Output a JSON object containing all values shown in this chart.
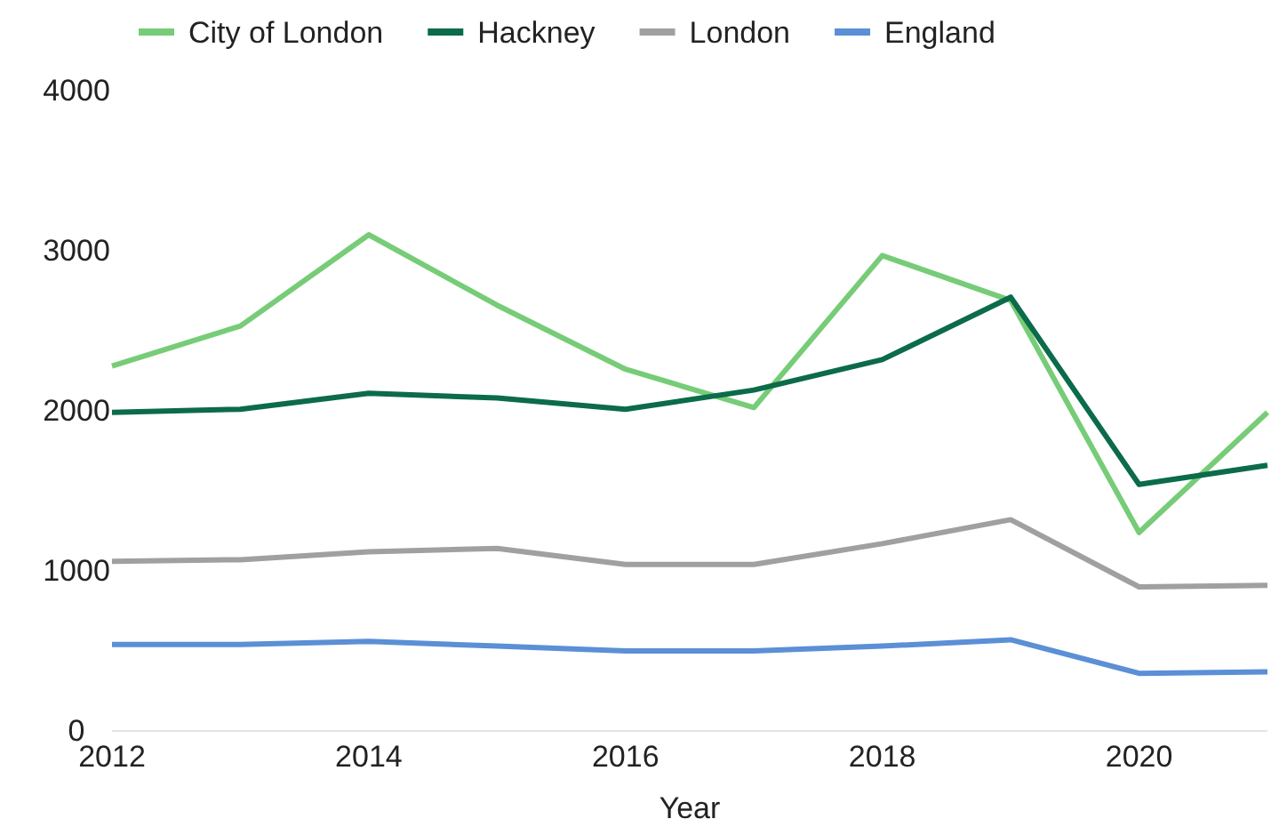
{
  "chart_data": {
    "type": "line",
    "xlabel": "Year",
    "x": [
      2012,
      2013,
      2014,
      2015,
      2016,
      2017,
      2018,
      2019,
      2020,
      2021
    ],
    "xlim": [
      2012,
      2021
    ],
    "xticks": [
      2012,
      2014,
      2016,
      2018,
      2020
    ],
    "ylim": [
      0,
      4000
    ],
    "yticks": [
      0,
      1000,
      2000,
      3000,
      4000
    ],
    "grid": false,
    "legend": "top",
    "marker": "none",
    "line_style": "solid",
    "series": [
      {
        "name": "City of London",
        "color": "#77cc77",
        "values": [
          2280,
          2530,
          3100,
          2660,
          2260,
          2020,
          2970,
          2690,
          1240,
          1990
        ]
      },
      {
        "name": "Hackney",
        "color": "#0b6b4a",
        "values": [
          1990,
          2010,
          2110,
          2080,
          2010,
          2130,
          2320,
          2710,
          1540,
          1660
        ]
      },
      {
        "name": "London",
        "color": "#a0a0a0",
        "values": [
          1060,
          1070,
          1120,
          1140,
          1040,
          1040,
          1170,
          1320,
          900,
          910
        ]
      },
      {
        "name": "England",
        "color": "#5b8fd6",
        "values": [
          540,
          540,
          560,
          530,
          500,
          500,
          530,
          570,
          360,
          370
        ]
      }
    ]
  }
}
